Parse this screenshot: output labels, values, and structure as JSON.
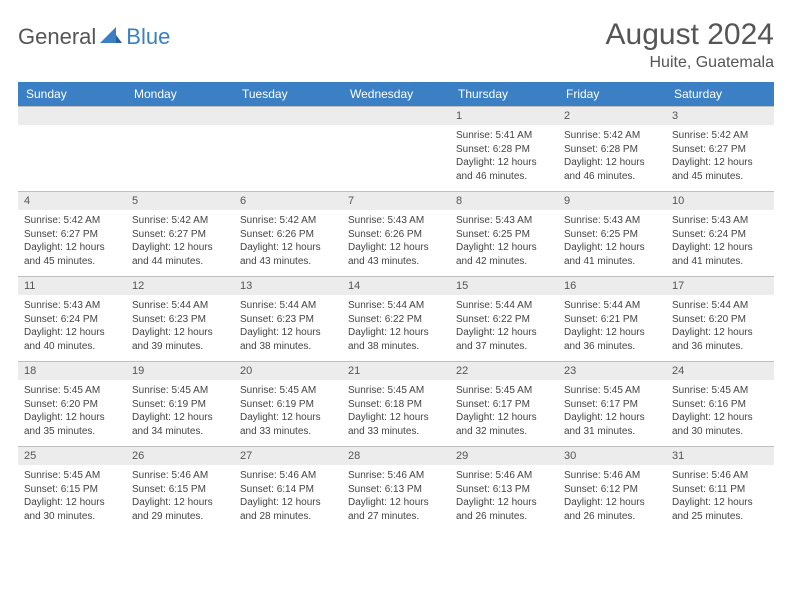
{
  "logo": {
    "part1": "General",
    "part2": "Blue"
  },
  "title": "August 2024",
  "location": "Huite, Guatemala",
  "colors": {
    "header_bg": "#3b7fc4",
    "header_text": "#ffffff",
    "daynum_bg": "#ececec",
    "border": "#bfbfbf",
    "body_text": "#444444",
    "title_text": "#555555"
  },
  "day_headers": [
    "Sunday",
    "Monday",
    "Tuesday",
    "Wednesday",
    "Thursday",
    "Friday",
    "Saturday"
  ],
  "weeks": [
    [
      null,
      null,
      null,
      null,
      {
        "n": "1",
        "sr": "5:41 AM",
        "ss": "6:28 PM",
        "dl": "12 hours and 46 minutes."
      },
      {
        "n": "2",
        "sr": "5:42 AM",
        "ss": "6:28 PM",
        "dl": "12 hours and 46 minutes."
      },
      {
        "n": "3",
        "sr": "5:42 AM",
        "ss": "6:27 PM",
        "dl": "12 hours and 45 minutes."
      }
    ],
    [
      {
        "n": "4",
        "sr": "5:42 AM",
        "ss": "6:27 PM",
        "dl": "12 hours and 45 minutes."
      },
      {
        "n": "5",
        "sr": "5:42 AM",
        "ss": "6:27 PM",
        "dl": "12 hours and 44 minutes."
      },
      {
        "n": "6",
        "sr": "5:42 AM",
        "ss": "6:26 PM",
        "dl": "12 hours and 43 minutes."
      },
      {
        "n": "7",
        "sr": "5:43 AM",
        "ss": "6:26 PM",
        "dl": "12 hours and 43 minutes."
      },
      {
        "n": "8",
        "sr": "5:43 AM",
        "ss": "6:25 PM",
        "dl": "12 hours and 42 minutes."
      },
      {
        "n": "9",
        "sr": "5:43 AM",
        "ss": "6:25 PM",
        "dl": "12 hours and 41 minutes."
      },
      {
        "n": "10",
        "sr": "5:43 AM",
        "ss": "6:24 PM",
        "dl": "12 hours and 41 minutes."
      }
    ],
    [
      {
        "n": "11",
        "sr": "5:43 AM",
        "ss": "6:24 PM",
        "dl": "12 hours and 40 minutes."
      },
      {
        "n": "12",
        "sr": "5:44 AM",
        "ss": "6:23 PM",
        "dl": "12 hours and 39 minutes."
      },
      {
        "n": "13",
        "sr": "5:44 AM",
        "ss": "6:23 PM",
        "dl": "12 hours and 38 minutes."
      },
      {
        "n": "14",
        "sr": "5:44 AM",
        "ss": "6:22 PM",
        "dl": "12 hours and 38 minutes."
      },
      {
        "n": "15",
        "sr": "5:44 AM",
        "ss": "6:22 PM",
        "dl": "12 hours and 37 minutes."
      },
      {
        "n": "16",
        "sr": "5:44 AM",
        "ss": "6:21 PM",
        "dl": "12 hours and 36 minutes."
      },
      {
        "n": "17",
        "sr": "5:44 AM",
        "ss": "6:20 PM",
        "dl": "12 hours and 36 minutes."
      }
    ],
    [
      {
        "n": "18",
        "sr": "5:45 AM",
        "ss": "6:20 PM",
        "dl": "12 hours and 35 minutes."
      },
      {
        "n": "19",
        "sr": "5:45 AM",
        "ss": "6:19 PM",
        "dl": "12 hours and 34 minutes."
      },
      {
        "n": "20",
        "sr": "5:45 AM",
        "ss": "6:19 PM",
        "dl": "12 hours and 33 minutes."
      },
      {
        "n": "21",
        "sr": "5:45 AM",
        "ss": "6:18 PM",
        "dl": "12 hours and 33 minutes."
      },
      {
        "n": "22",
        "sr": "5:45 AM",
        "ss": "6:17 PM",
        "dl": "12 hours and 32 minutes."
      },
      {
        "n": "23",
        "sr": "5:45 AM",
        "ss": "6:17 PM",
        "dl": "12 hours and 31 minutes."
      },
      {
        "n": "24",
        "sr": "5:45 AM",
        "ss": "6:16 PM",
        "dl": "12 hours and 30 minutes."
      }
    ],
    [
      {
        "n": "25",
        "sr": "5:45 AM",
        "ss": "6:15 PM",
        "dl": "12 hours and 30 minutes."
      },
      {
        "n": "26",
        "sr": "5:46 AM",
        "ss": "6:15 PM",
        "dl": "12 hours and 29 minutes."
      },
      {
        "n": "27",
        "sr": "5:46 AM",
        "ss": "6:14 PM",
        "dl": "12 hours and 28 minutes."
      },
      {
        "n": "28",
        "sr": "5:46 AM",
        "ss": "6:13 PM",
        "dl": "12 hours and 27 minutes."
      },
      {
        "n": "29",
        "sr": "5:46 AM",
        "ss": "6:13 PM",
        "dl": "12 hours and 26 minutes."
      },
      {
        "n": "30",
        "sr": "5:46 AM",
        "ss": "6:12 PM",
        "dl": "12 hours and 26 minutes."
      },
      {
        "n": "31",
        "sr": "5:46 AM",
        "ss": "6:11 PM",
        "dl": "12 hours and 25 minutes."
      }
    ]
  ],
  "labels": {
    "sunrise": "Sunrise:",
    "sunset": "Sunset:",
    "daylight": "Daylight:"
  }
}
